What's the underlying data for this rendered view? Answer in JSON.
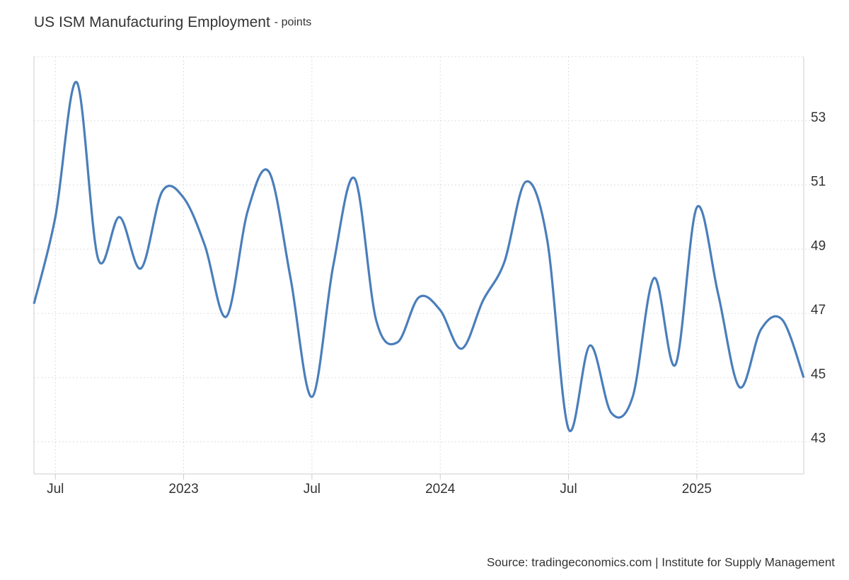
{
  "chart_data": {
    "type": "line",
    "title": "US ISM Manufacturing Employment",
    "subtitle": "- points",
    "source": "Source: tradingeconomics.com | Institute for Supply Management",
    "x": [
      "2022-06",
      "2022-07",
      "2022-08",
      "2022-09",
      "2022-10",
      "2022-11",
      "2022-12",
      "2023-01",
      "2023-02",
      "2023-03",
      "2023-04",
      "2023-05",
      "2023-06",
      "2023-07",
      "2023-08",
      "2023-09",
      "2023-10",
      "2023-11",
      "2023-12",
      "2024-01",
      "2024-02",
      "2024-03",
      "2024-04",
      "2024-05",
      "2024-06",
      "2024-07",
      "2024-08",
      "2024-09",
      "2024-10",
      "2024-11",
      "2024-12",
      "2025-01",
      "2025-02",
      "2025-03",
      "2025-04",
      "2025-05",
      "2025-06"
    ],
    "series": [
      {
        "name": "US ISM Manufacturing Employment",
        "color": "#4a7ebb",
        "values": [
          47.3,
          50.0,
          54.2,
          48.7,
          50.0,
          48.4,
          50.8,
          50.6,
          49.1,
          46.9,
          50.2,
          51.4,
          48.1,
          44.4,
          48.5,
          51.2,
          46.8,
          46.1,
          47.5,
          47.1,
          45.9,
          47.4,
          48.6,
          51.1,
          49.3,
          43.4,
          46.0,
          43.9,
          44.4,
          48.1,
          45.4,
          50.3,
          47.6,
          44.7,
          46.5,
          46.8,
          45.0
        ]
      }
    ],
    "xticks": [
      {
        "value": "2022-07",
        "label": "Jul"
      },
      {
        "value": "2023-01",
        "label": "2023"
      },
      {
        "value": "2023-07",
        "label": "Jul"
      },
      {
        "value": "2024-01",
        "label": "2024"
      },
      {
        "value": "2024-07",
        "label": "Jul"
      },
      {
        "value": "2025-01",
        "label": "2025"
      }
    ],
    "ylim": [
      42,
      55
    ],
    "yticks": [
      43,
      45,
      47,
      49,
      51,
      53
    ],
    "grid": true
  }
}
